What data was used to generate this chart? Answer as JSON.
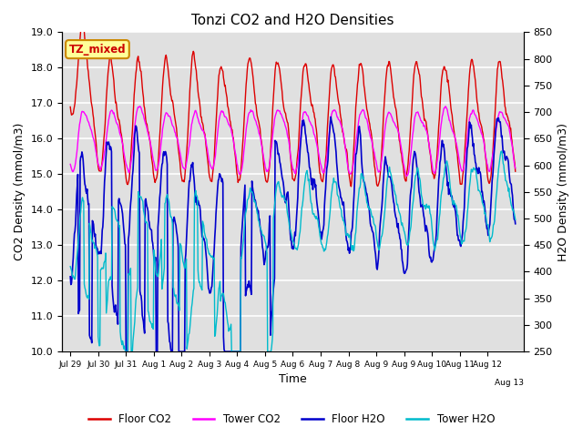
{
  "title": "Tonzi CO2 and H2O Densities",
  "xlabel": "Time",
  "ylabel_left": "CO2 Density (mmol/m3)",
  "ylabel_right": "H2O Density (mmol/m3)",
  "annotation_text": "TZ_mixed",
  "annotation_color": "#cc0000",
  "annotation_bg": "#ffff99",
  "annotation_border": "#cc8800",
  "ylim_left": [
    10.0,
    19.0
  ],
  "ylim_right": [
    250,
    850
  ],
  "xtick_labels": [
    "Jul 29",
    "Jul 30",
    "Jul 31",
    "Aug 1",
    "Aug 2",
    "Aug 3",
    "Aug 4",
    "Aug 5",
    "Aug 6",
    "Aug 7",
    "Aug 8",
    "Aug 9",
    "Aug 9",
    "Aug 10",
    "Aug 11",
    "Aug 12",
    "Aug 13"
  ],
  "ytick_left": [
    10.0,
    11.0,
    12.0,
    13.0,
    14.0,
    15.0,
    16.0,
    17.0,
    18.0,
    19.0
  ],
  "ytick_right": [
    250,
    300,
    350,
    400,
    450,
    500,
    550,
    600,
    650,
    700,
    750,
    800,
    850
  ],
  "colors": {
    "floor_co2": "#dd0000",
    "tower_co2": "#ff00ff",
    "floor_h2o": "#0000cc",
    "tower_h2o": "#00bbcc"
  },
  "legend_labels": [
    "Floor CO2",
    "Tower CO2",
    "Floor H2O",
    "Tower H2O"
  ],
  "background_color": "#ffffff",
  "plot_bg_color": "#e0e0e0",
  "grid_color": "#ffffff",
  "seed": 42
}
